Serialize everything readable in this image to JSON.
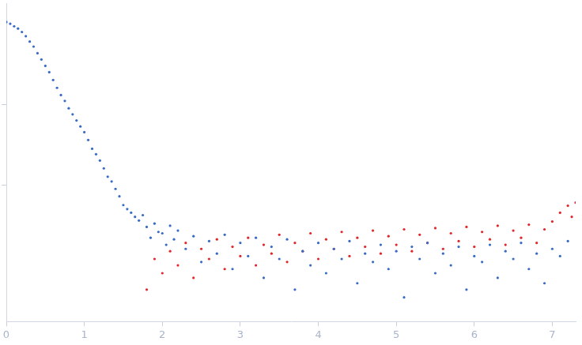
{
  "chart_data": {
    "type": "scatter",
    "log": "y",
    "grid": false,
    "tick_labels": "x",
    "xlim": [
      0,
      7.3
    ],
    "xticks": [
      0,
      1,
      2,
      3,
      4,
      5,
      6,
      7
    ],
    "ylim": [
      0.0002,
      1.8
    ],
    "yticks": [
      0.01,
      0.1
    ],
    "series": [
      {
        "color": "#3a6bc4",
        "marker": "circle",
        "x": [
          0,
          0.05,
          0.1,
          0.15,
          0.2,
          0.25,
          0.3,
          0.35,
          0.4,
          0.45,
          0.5,
          0.55,
          0.6,
          0.65,
          0.7,
          0.75,
          0.8,
          0.85,
          0.9,
          0.95,
          1.0,
          1.05,
          1.1,
          1.15,
          1.2,
          1.25,
          1.3,
          1.35,
          1.4,
          1.45,
          1.5,
          1.55,
          1.6,
          1.65,
          1.7,
          1.75,
          1.8,
          1.85,
          1.9,
          1.95,
          2.0,
          2.05,
          2.1,
          2.15,
          2.2,
          2.3,
          2.4,
          2.5,
          2.6,
          2.7,
          2.8,
          2.9,
          3.0,
          3.1,
          3.2,
          3.3,
          3.4,
          3.5,
          3.6,
          3.7,
          3.8,
          3.9,
          4.0,
          4.1,
          4.2,
          4.3,
          4.4,
          4.5,
          4.6,
          4.7,
          4.8,
          4.9,
          5.0,
          5.1,
          5.2,
          5.3,
          5.4,
          5.5,
          5.6,
          5.7,
          5.8,
          5.9,
          6.0,
          6.1,
          6.2,
          6.3,
          6.4,
          6.5,
          6.6,
          6.7,
          6.8,
          6.9,
          7.0,
          7.1,
          7.2
        ],
        "values": [
          1.05,
          1.0,
          0.93,
          0.87,
          0.79,
          0.7,
          0.6,
          0.52,
          0.43,
          0.36,
          0.3,
          0.25,
          0.2,
          0.16,
          0.13,
          0.11,
          0.089,
          0.075,
          0.063,
          0.053,
          0.045,
          0.036,
          0.028,
          0.024,
          0.02,
          0.016,
          0.0126,
          0.011,
          0.0089,
          0.0072,
          0.0056,
          0.005,
          0.0045,
          0.004,
          0.0036,
          0.0042,
          0.003,
          0.0022,
          0.0033,
          0.0026,
          0.0025,
          0.0018,
          0.0031,
          0.0021,
          0.0027,
          0.0016,
          0.0023,
          0.0011,
          0.002,
          0.0014,
          0.0024,
          0.0009,
          0.0019,
          0.0013,
          0.0022,
          0.0007,
          0.0017,
          0.0012,
          0.0021,
          0.0005,
          0.0015,
          0.001,
          0.0019,
          0.0008,
          0.0016,
          0.0012,
          0.002,
          0.0006,
          0.0014,
          0.0011,
          0.0018,
          0.0009,
          0.0015,
          0.0004,
          0.0017,
          0.0012,
          0.0019,
          0.0008,
          0.0014,
          0.001,
          0.0017,
          0.0005,
          0.0013,
          0.0011,
          0.0018,
          0.0007,
          0.0015,
          0.0012,
          0.0019,
          0.0009,
          0.0014,
          0.0006,
          0.0016,
          0.0013,
          0.002
        ]
      },
      {
        "color": "#e0282a",
        "marker": "circle",
        "x": [
          1.8,
          1.9,
          2.0,
          2.1,
          2.2,
          2.3,
          2.4,
          2.5,
          2.6,
          2.7,
          2.8,
          2.9,
          3.0,
          3.1,
          3.2,
          3.3,
          3.4,
          3.5,
          3.6,
          3.7,
          3.8,
          3.9,
          4.0,
          4.1,
          4.2,
          4.3,
          4.4,
          4.5,
          4.6,
          4.7,
          4.8,
          4.9,
          5.0,
          5.1,
          5.2,
          5.3,
          5.4,
          5.5,
          5.6,
          5.7,
          5.8,
          5.9,
          6.0,
          6.1,
          6.2,
          6.3,
          6.4,
          6.5,
          6.6,
          6.7,
          6.8,
          6.9,
          7.0,
          7.1,
          7.2,
          7.25,
          7.3
        ],
        "values": [
          0.0005,
          0.0012,
          0.0008,
          0.0015,
          0.001,
          0.0019,
          0.0007,
          0.0016,
          0.0012,
          0.0021,
          0.0009,
          0.0017,
          0.0013,
          0.0022,
          0.001,
          0.0018,
          0.0014,
          0.0024,
          0.0011,
          0.0019,
          0.0015,
          0.0025,
          0.0012,
          0.0021,
          0.0016,
          0.0026,
          0.0013,
          0.0022,
          0.0017,
          0.0027,
          0.0014,
          0.0023,
          0.0018,
          0.0028,
          0.0015,
          0.0024,
          0.0019,
          0.0029,
          0.0016,
          0.0025,
          0.002,
          0.003,
          0.0017,
          0.0026,
          0.0021,
          0.0031,
          0.0018,
          0.0027,
          0.0022,
          0.0032,
          0.0019,
          0.0028,
          0.0035,
          0.0045,
          0.0055,
          0.004,
          0.006
        ]
      }
    ]
  }
}
